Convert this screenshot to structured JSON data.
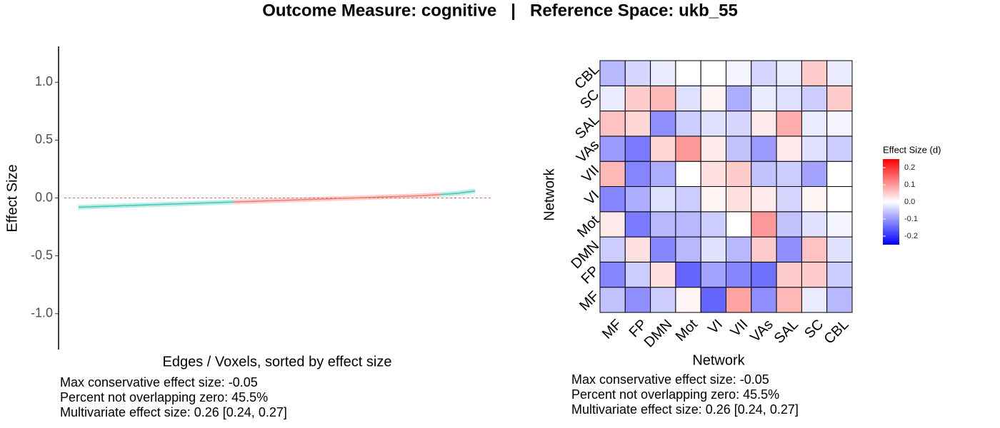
{
  "title": "Outcome Measure: cognitive   |   Reference Space: ukb_55",
  "chart_data": [
    {
      "type": "line",
      "ylabel": "Effect Size",
      "xlabel": "Edges / Voxels, sorted by effect size",
      "ylim": [
        -1.31,
        1.31
      ],
      "yticks": [
        {
          "value": -1,
          "label": "-1.0"
        },
        {
          "value": -0.5,
          "label": "-0.5"
        },
        {
          "value": 0,
          "label": "0.0"
        },
        {
          "value": 0.5,
          "label": "0.5"
        },
        {
          "value": 1,
          "label": "1.0"
        }
      ],
      "hline": 0,
      "hline_color": "#e06666",
      "series": [
        {
          "color": "#3ec9b4",
          "values": [
            -0.08,
            -0.075,
            -0.07,
            -0.065,
            -0.06,
            -0.055,
            -0.05,
            -0.045,
            -0.04,
            -0.035,
            null,
            null,
            null,
            null,
            null,
            null,
            null,
            null,
            null,
            null,
            null,
            0.03,
            0.04,
            0.06
          ],
          "lower": [
            -0.1,
            -0.095,
            -0.09,
            -0.085,
            -0.08,
            -0.075,
            -0.07,
            -0.065,
            -0.06,
            -0.055,
            null,
            null,
            null,
            null,
            null,
            null,
            null,
            null,
            null,
            null,
            null,
            0.01,
            0.02,
            0.04
          ],
          "upper": [
            -0.06,
            -0.055,
            -0.05,
            -0.045,
            -0.04,
            -0.035,
            -0.03,
            -0.025,
            -0.02,
            -0.015,
            null,
            null,
            null,
            null,
            null,
            null,
            null,
            null,
            null,
            null,
            null,
            0.05,
            0.06,
            0.08
          ]
        },
        {
          "color": "#f07a73",
          "values": [
            null,
            null,
            null,
            null,
            null,
            null,
            null,
            null,
            null,
            -0.035,
            -0.03,
            -0.025,
            -0.02,
            -0.015,
            -0.01,
            -0.005,
            0,
            0.005,
            0.01,
            0.015,
            0.02,
            0.03,
            null,
            null
          ],
          "lower": [
            null,
            null,
            null,
            null,
            null,
            null,
            null,
            null,
            null,
            -0.055,
            -0.05,
            -0.045,
            -0.04,
            -0.035,
            -0.03,
            -0.025,
            -0.02,
            -0.015,
            -0.01,
            -0.005,
            0,
            0.01,
            null,
            null
          ],
          "upper": [
            null,
            null,
            null,
            null,
            null,
            null,
            null,
            null,
            null,
            -0.015,
            -0.01,
            -0.005,
            0,
            0.005,
            0.01,
            0.015,
            0.02,
            0.025,
            0.03,
            0.035,
            0.04,
            0.05,
            null,
            null
          ]
        }
      ],
      "annotations": [
        "Max conservative effect size: -0.05",
        "Percent not overlapping zero: 45.5%",
        "Multivariate effect size: 0.26 [0.24, 0.27]"
      ]
    },
    {
      "type": "heatmap",
      "xlabel": "Network",
      "ylabel": "Network",
      "x_categories": [
        "MF",
        "FP",
        "DMN",
        "Mot",
        "VI",
        "VII",
        "VAs",
        "SAL",
        "SC",
        "CBL"
      ],
      "y_categories": [
        "MF",
        "FP",
        "DMN",
        "Mot",
        "VI",
        "VII",
        "VAs",
        "SAL",
        "SC",
        "CBL"
      ],
      "z": [
        [
          -0.06,
          -0.11,
          -0.05,
          0.01,
          -0.15,
          0.09,
          -0.11,
          0.07,
          -0.02,
          -0.07
        ],
        [
          -0.12,
          -0.05,
          0.03,
          -0.15,
          -0.09,
          -0.12,
          -0.14,
          0.05,
          0.05,
          -0.05
        ],
        [
          -0.05,
          0.03,
          -0.12,
          -0.07,
          -0.03,
          -0.07,
          0.05,
          -0.11,
          0.06,
          -0.03
        ],
        [
          0.02,
          -0.13,
          -0.07,
          -0.07,
          -0.05,
          0,
          0.1,
          -0.06,
          -0.03,
          -0.01
        ],
        [
          -0.12,
          -0.08,
          -0.03,
          -0.05,
          0.01,
          0.03,
          0.02,
          -0.04,
          0.01,
          0
        ],
        [
          0.07,
          -0.12,
          -0.08,
          0,
          0.03,
          0.05,
          -0.06,
          -0.05,
          -0.09,
          0
        ],
        [
          -0.1,
          -0.13,
          0.04,
          0.1,
          0.02,
          -0.06,
          -0.1,
          0.02,
          -0.03,
          -0.05
        ],
        [
          0.06,
          0.04,
          -0.11,
          -0.05,
          -0.03,
          -0.04,
          0.02,
          0.08,
          -0.02,
          -0.01
        ],
        [
          -0.02,
          0.05,
          0.07,
          -0.03,
          0.01,
          -0.08,
          -0.02,
          -0.03,
          -0.05,
          0.05
        ],
        [
          -0.07,
          -0.04,
          -0.02,
          0,
          0,
          -0.01,
          -0.04,
          -0.02,
          0.05,
          -0.02
        ]
      ],
      "colors": {
        "low": "#0000ff",
        "mid": "#ffffff",
        "high": "#ff0000"
      },
      "clim": [
        -0.25,
        0.25
      ],
      "legend_title": "Effect Size (d)",
      "cticks": [
        {
          "value": 0.2,
          "label": "0.2"
        },
        {
          "value": 0.1,
          "label": "0.1"
        },
        {
          "value": 0,
          "label": "0.0"
        },
        {
          "value": -0.1,
          "label": "-0.1"
        },
        {
          "value": -0.2,
          "label": "-0.2"
        }
      ],
      "annotations": [
        "Max conservative effect size: -0.05",
        "Percent not overlapping zero: 45.5%",
        "Multivariate effect size: 0.26 [0.24, 0.27]"
      ]
    }
  ]
}
